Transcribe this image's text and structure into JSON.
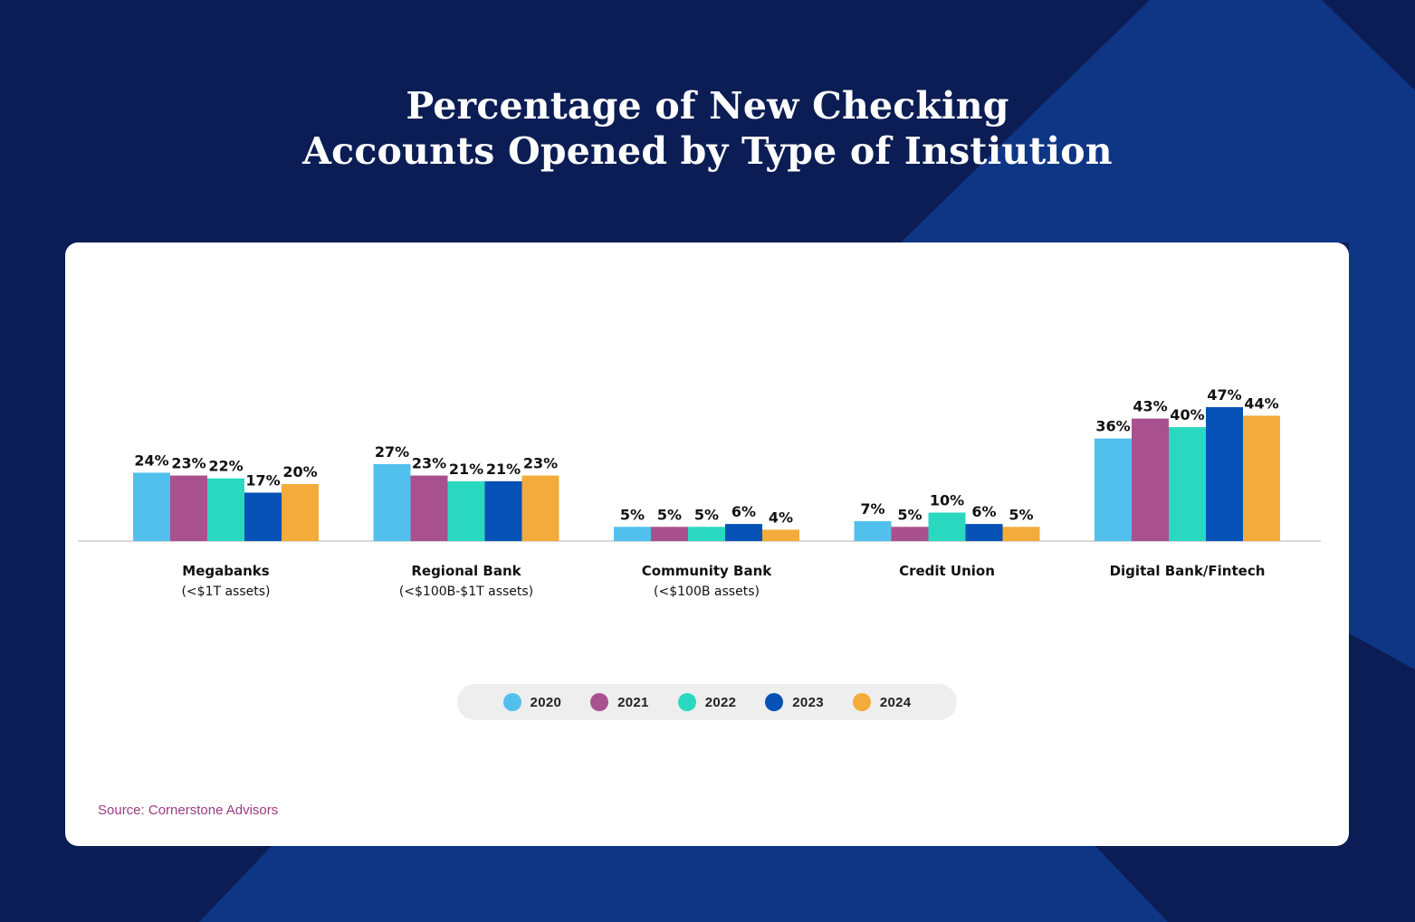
{
  "title_line1": "Percentage of New Checking",
  "title_line2": "Accounts Opened by Type of Instiution",
  "source": "Source: Cornerstone Advisors",
  "colors": {
    "background": "#0b1d54",
    "background_accent": "#0f3585",
    "card": "#ffffff",
    "series": [
      "#52c0ec",
      "#a9518f",
      "#2ad8c0",
      "#0651b5",
      "#f3ab3b"
    ]
  },
  "chart_data": {
    "type": "bar",
    "title": "Percentage of New Checking Accounts Opened by Type of Instiution",
    "categories": [
      {
        "name": "Megabanks",
        "sub": "(<$1T assets)"
      },
      {
        "name": "Regional Bank",
        "sub": "(<$100B-$1T assets)"
      },
      {
        "name": "Community Bank",
        "sub": "(<$100B assets)"
      },
      {
        "name": "Credit Union",
        "sub": ""
      },
      {
        "name": "Digital Bank/Fintech",
        "sub": ""
      }
    ],
    "series": [
      {
        "name": "2020",
        "values": [
          24,
          27,
          5,
          7,
          36
        ]
      },
      {
        "name": "2021",
        "values": [
          23,
          23,
          5,
          5,
          43
        ]
      },
      {
        "name": "2022",
        "values": [
          22,
          21,
          5,
          10,
          40
        ]
      },
      {
        "name": "2023",
        "values": [
          17,
          21,
          6,
          6,
          47
        ]
      },
      {
        "name": "2024",
        "values": [
          20,
          23,
          4,
          5,
          44
        ]
      }
    ],
    "value_suffix": "%",
    "ylim": [
      0,
      47
    ],
    "grid": false,
    "legend_position": "bottom"
  }
}
